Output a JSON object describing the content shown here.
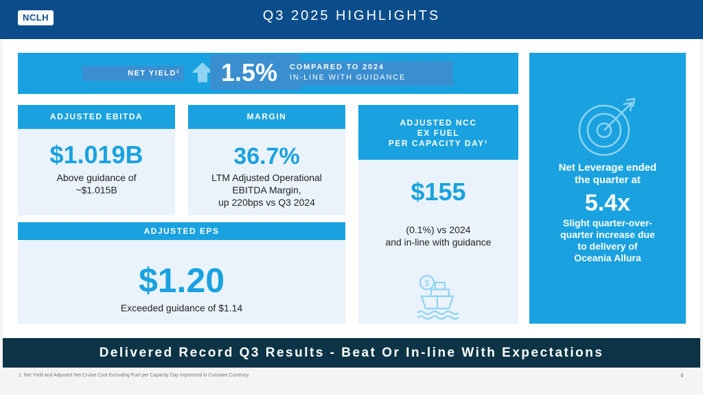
{
  "header": {
    "logo": "NCLH",
    "title": "Q3 2025 HIGHLIGHTS"
  },
  "net_yield": {
    "label": "NET YIELD¹",
    "value": "1.5%",
    "desc_line1": "COMPARED TO 2024",
    "desc_line2": "IN-LINE WITH GUIDANCE"
  },
  "ebitda": {
    "heading": "ADJUSTED EBITDA",
    "value": "$1.019B",
    "desc_line1": "Above guidance of",
    "desc_line2": "~$1.015B"
  },
  "margin": {
    "heading": "MARGIN",
    "value": "36.7%",
    "desc_line1": "LTM Adjusted Operational",
    "desc_line2": "EBITDA Margin,",
    "desc_line3": "up 220bps vs Q3 2024"
  },
  "ncc": {
    "heading_line1": "ADJUSTED NCC",
    "heading_line2": "EX FUEL",
    "heading_line3": "PER CAPACITY DAY¹",
    "value": "$155",
    "desc_line1": "(0.1%) vs 2024",
    "desc_line2": "and in-line with guidance",
    "icon": "ship-dollar-icon"
  },
  "eps": {
    "heading": "ADJUSTED EPS",
    "value": "$1.20",
    "desc": "Exceeded guidance of $1.14"
  },
  "leverage": {
    "icon": "target-arrow-icon",
    "line1": "Net Leverage ended",
    "line2": "the quarter at",
    "value": "5.4x",
    "desc_line1": "Slight quarter-over-",
    "desc_line2": "quarter increase due",
    "desc_line3": "to delivery of",
    "desc_line4": "Oceania Allura"
  },
  "banner": "Delivered Record Q3 Results - Beat Or In-line With Expectations",
  "footnote": "1.      Net Yield and Adjusted Net Cruise Cost Excluding Fuel per Capacity Day expressed in Constant Currency.",
  "page_number": "4",
  "colors": {
    "navy": "#0b4d8a",
    "accent": "#1aa2e0",
    "banner": "#0c3446",
    "card": "#eaf3fb"
  }
}
